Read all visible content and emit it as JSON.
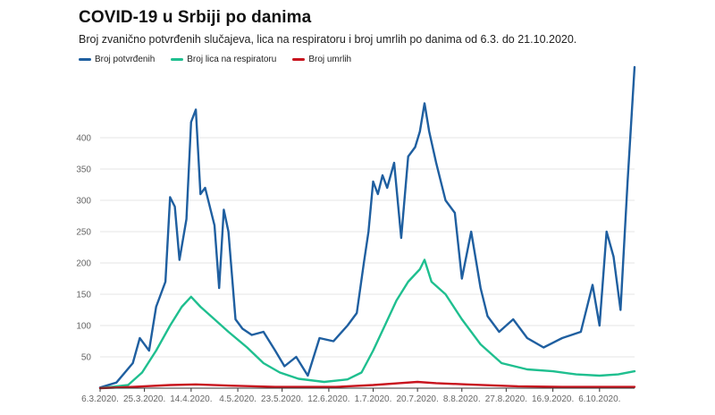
{
  "title": "COVID-19 u Srbiji po danima",
  "subtitle": "Broj zvanično potvrđenih slučajeva, lica na respiratoru i broj umrlih po danima od 6.3. do 21.10.2020.",
  "colors": {
    "potvrdjeni": "#1f5fa0",
    "respirator": "#1fbf8f",
    "umrli": "#c8141e",
    "grid": "#e6e6e6",
    "axis": "#333333"
  },
  "chart_data": {
    "type": "line",
    "title": "COVID-19 u Srbiji po danima",
    "subtitle": "Broj zvanično potvrđenih slučajeva, lica na respiratoru i broj umrlih po danima od 6.3. do 21.10.2020.",
    "x_start": "2020-03-06",
    "x_end": "2020-10-21",
    "x_ticks": [
      "6.3.2020.",
      "25.3.2020.",
      "14.4.2020.",
      "4.5.2020.",
      "23.5.2020.",
      "12.6.2020.",
      "1.7.2020.",
      "20.7.2020.",
      "8.8.2020.",
      "27.8.2020.",
      "16.9.2020.",
      "6.10.2020."
    ],
    "y_ticks": [
      50,
      100,
      150,
      200,
      250,
      300,
      350,
      400
    ],
    "ylim": [
      0,
      520
    ],
    "grid": true,
    "legend_position": "top-left",
    "series": [
      {
        "name": "Broj potvrđenih",
        "key": "potvrdjeni",
        "points": [
          [
            "6.3.2020.",
            1
          ],
          [
            "13.3.2020.",
            9
          ],
          [
            "20.3.2020.",
            40
          ],
          [
            "23.3.2020.",
            80
          ],
          [
            "27.3.2020.",
            60
          ],
          [
            "30.3.2020.",
            130
          ],
          [
            "3.4.2020.",
            170
          ],
          [
            "5.4.2020.",
            305
          ],
          [
            "7.4.2020.",
            290
          ],
          [
            "9.4.2020.",
            205
          ],
          [
            "12.4.2020.",
            270
          ],
          [
            "14.4.2020.",
            425
          ],
          [
            "16.4.2020.",
            445
          ],
          [
            "18.4.2020.",
            310
          ],
          [
            "20.4.2020.",
            320
          ],
          [
            "24.4.2020.",
            260
          ],
          [
            "26.4.2020.",
            160
          ],
          [
            "28.4.2020.",
            285
          ],
          [
            "30.4.2020.",
            250
          ],
          [
            "3.5.2020.",
            110
          ],
          [
            "6.5.2020.",
            95
          ],
          [
            "10.5.2020.",
            85
          ],
          [
            "15.5.2020.",
            90
          ],
          [
            "20.5.2020.",
            60
          ],
          [
            "24.5.2020.",
            35
          ],
          [
            "29.5.2020.",
            50
          ],
          [
            "3.6.2020.",
            20
          ],
          [
            "8.6.2020.",
            80
          ],
          [
            "14.6.2020.",
            75
          ],
          [
            "20.6.2020.",
            100
          ],
          [
            "24.6.2020.",
            120
          ],
          [
            "27.6.2020.",
            200
          ],
          [
            "29.6.2020.",
            250
          ],
          [
            "1.7.2020.",
            330
          ],
          [
            "3.7.2020.",
            310
          ],
          [
            "5.7.2020.",
            340
          ],
          [
            "7.7.2020.",
            320
          ],
          [
            "10.7.2020.",
            360
          ],
          [
            "13.7.2020.",
            240
          ],
          [
            "16.7.2020.",
            370
          ],
          [
            "19.7.2020.",
            385
          ],
          [
            "21.7.2020.",
            410
          ],
          [
            "23.7.2020.",
            455
          ],
          [
            "25.7.2020.",
            410
          ],
          [
            "28.7.2020.",
            360
          ],
          [
            "1.8.2020.",
            300
          ],
          [
            "5.8.2020.",
            280
          ],
          [
            "8.8.2020.",
            175
          ],
          [
            "12.8.2020.",
            250
          ],
          [
            "16.8.2020.",
            160
          ],
          [
            "19.8.2020.",
            115
          ],
          [
            "24.8.2020.",
            90
          ],
          [
            "30.8.2020.",
            110
          ],
          [
            "5.9.2020.",
            80
          ],
          [
            "12.9.2020.",
            65
          ],
          [
            "20.9.2020.",
            80
          ],
          [
            "28.9.2020.",
            90
          ],
          [
            "3.10.2020.",
            165
          ],
          [
            "6.10.2020.",
            100
          ],
          [
            "9.10.2020.",
            250
          ],
          [
            "12.10.2020.",
            210
          ],
          [
            "15.10.2020.",
            125
          ],
          [
            "18.10.2020.",
            330
          ],
          [
            "21.10.2020.",
            513
          ]
        ]
      },
      {
        "name": "Broj lica na respiratoru",
        "key": "respirator",
        "points": [
          [
            "6.3.2020.",
            0
          ],
          [
            "18.3.2020.",
            5
          ],
          [
            "24.3.2020.",
            25
          ],
          [
            "30.3.2020.",
            60
          ],
          [
            "5.4.2020.",
            100
          ],
          [
            "10.4.2020.",
            130
          ],
          [
            "14.4.2020.",
            146
          ],
          [
            "18.4.2020.",
            130
          ],
          [
            "24.4.2020.",
            110
          ],
          [
            "30.4.2020.",
            90
          ],
          [
            "8.5.2020.",
            65
          ],
          [
            "15.5.2020.",
            40
          ],
          [
            "22.5.2020.",
            25
          ],
          [
            "30.5.2020.",
            15
          ],
          [
            "10.6.2020.",
            10
          ],
          [
            "20.6.2020.",
            14
          ],
          [
            "26.6.2020.",
            25
          ],
          [
            "1.7.2020.",
            60
          ],
          [
            "6.7.2020.",
            100
          ],
          [
            "11.7.2020.",
            140
          ],
          [
            "16.7.2020.",
            170
          ],
          [
            "21.7.2020.",
            190
          ],
          [
            "23.7.2020.",
            205
          ],
          [
            "26.7.2020.",
            170
          ],
          [
            "1.8.2020.",
            150
          ],
          [
            "8.8.2020.",
            110
          ],
          [
            "16.8.2020.",
            70
          ],
          [
            "25.8.2020.",
            40
          ],
          [
            "5.9.2020.",
            30
          ],
          [
            "16.9.2020.",
            27
          ],
          [
            "26.9.2020.",
            22
          ],
          [
            "6.10.2020.",
            20
          ],
          [
            "14.10.2020.",
            22
          ],
          [
            "21.10.2020.",
            27
          ]
        ]
      },
      {
        "name": "Broj umrlih",
        "key": "umrli",
        "points": [
          [
            "6.3.2020.",
            0
          ],
          [
            "20.3.2020.",
            2
          ],
          [
            "5.4.2020.",
            5
          ],
          [
            "16.4.2020.",
            6
          ],
          [
            "1.5.2020.",
            4
          ],
          [
            "20.5.2020.",
            2
          ],
          [
            "15.6.2020.",
            2
          ],
          [
            "1.7.2020.",
            5
          ],
          [
            "12.7.2020.",
            8
          ],
          [
            "20.7.2020.",
            10
          ],
          [
            "28.7.2020.",
            8
          ],
          [
            "10.8.2020.",
            6
          ],
          [
            "1.9.2020.",
            3
          ],
          [
            "20.9.2020.",
            2
          ],
          [
            "21.10.2020.",
            2
          ]
        ]
      }
    ]
  }
}
